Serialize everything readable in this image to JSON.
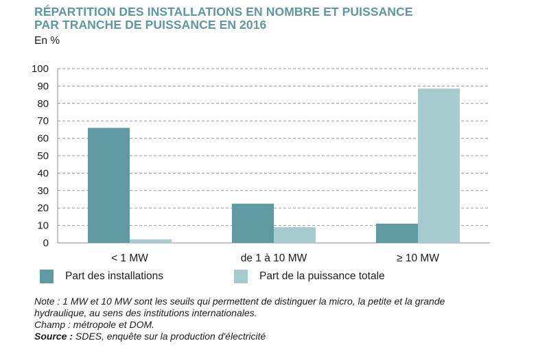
{
  "header": {
    "title_line1": "RÉPARTITION DES INSTALLATIONS EN NOMBRE ET PUISSANCE",
    "title_line2": "PAR TRANCHE DE PUISSANCE EN 2016",
    "unit": "En %"
  },
  "chart_data": {
    "type": "bar",
    "title": "RÉPARTITION DES INSTALLATIONS EN NOMBRE ET PUISSANCE PAR TRANCHE DE PUISSANCE EN 2016",
    "ylabel": "En %",
    "xlabel": "",
    "ylim": [
      0,
      100
    ],
    "yticks": [
      0,
      10,
      20,
      30,
      40,
      50,
      60,
      70,
      80,
      90,
      100
    ],
    "grid": true,
    "legend_position": "bottom",
    "categories": [
      "< 1 MW",
      "de 1 à 10 MW",
      "≥ 10 MW"
    ],
    "series": [
      {
        "name": "Part des installations",
        "color": "#5f9aa2",
        "values": [
          66,
          22.5,
          11
        ]
      },
      {
        "name": "Part de la puissance totale",
        "color": "#a6cbcf",
        "values": [
          2,
          9,
          88.5
        ]
      }
    ]
  },
  "notes": {
    "note_line1": "Note : 1 MW et 10 MW sont les seuils qui permettent de distinguer la micro, la petite et la grande",
    "note_line2": "hydraulique, au sens des institutions internationales.",
    "champ": "Champ : métropole et DOM.",
    "source_label": "Source :",
    "source_text": " SDES, enquête sur la production d'électricité"
  },
  "colors": {
    "title": "#5f97a0",
    "grid": "#9a9a9a",
    "axis": "#8a8a8a"
  }
}
